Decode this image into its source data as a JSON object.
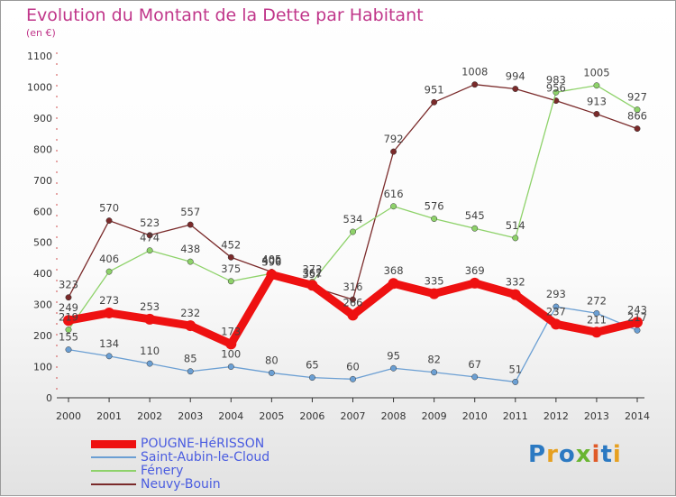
{
  "title": "Evolution du Montant de la Dette par Habitant",
  "unit": "(en €)",
  "logo": {
    "text": "Proxiti",
    "colors": [
      "#2b79c2",
      "#e6a020",
      "#2b79c2",
      "#69b531",
      "#e05a28",
      "#2b79c2",
      "#e6a020"
    ]
  },
  "chart_data": {
    "type": "line",
    "title": "Evolution du Montant de la Dette par Habitant",
    "xlabel": "",
    "ylabel": "(en €)",
    "x": [
      "2000",
      "2001",
      "2002",
      "2003",
      "2004",
      "2005",
      "2006",
      "2007",
      "2008",
      "2009",
      "2010",
      "2011",
      "2012",
      "2013",
      "2014"
    ],
    "ylim": [
      0,
      1100
    ],
    "yticks": [
      "0",
      "100",
      "200",
      "300",
      "400",
      "500",
      "600",
      "700",
      "800",
      "900",
      "1000",
      "1100"
    ],
    "grid": false,
    "legend_position": "bottom-left",
    "series": [
      {
        "name": "POUGNE-HéRISSON",
        "color": "#ee1111",
        "values": [
          249,
          273,
          253,
          232,
          173,
          396,
          362,
          266,
          368,
          335,
          369,
          332,
          237,
          211,
          243
        ]
      },
      {
        "name": "Saint-Aubin-le-Cloud",
        "color": "#6b9fd3",
        "values": [
          155,
          134,
          110,
          85,
          100,
          80,
          65,
          60,
          95,
          82,
          67,
          51,
          293,
          272,
          217
        ]
      },
      {
        "name": "Fénery",
        "color": "#8ed26a",
        "values": [
          219,
          406,
          474,
          438,
          375,
          400,
          373,
          534,
          616,
          576,
          545,
          514,
          983,
          1005,
          927
        ]
      },
      {
        "name": "Neuvy-Bouin",
        "color": "#7a2a2a",
        "values": [
          323,
          570,
          523,
          557,
          452,
          405,
          357,
          316,
          792,
          951,
          1008,
          994,
          956,
          913,
          866
        ]
      }
    ]
  }
}
